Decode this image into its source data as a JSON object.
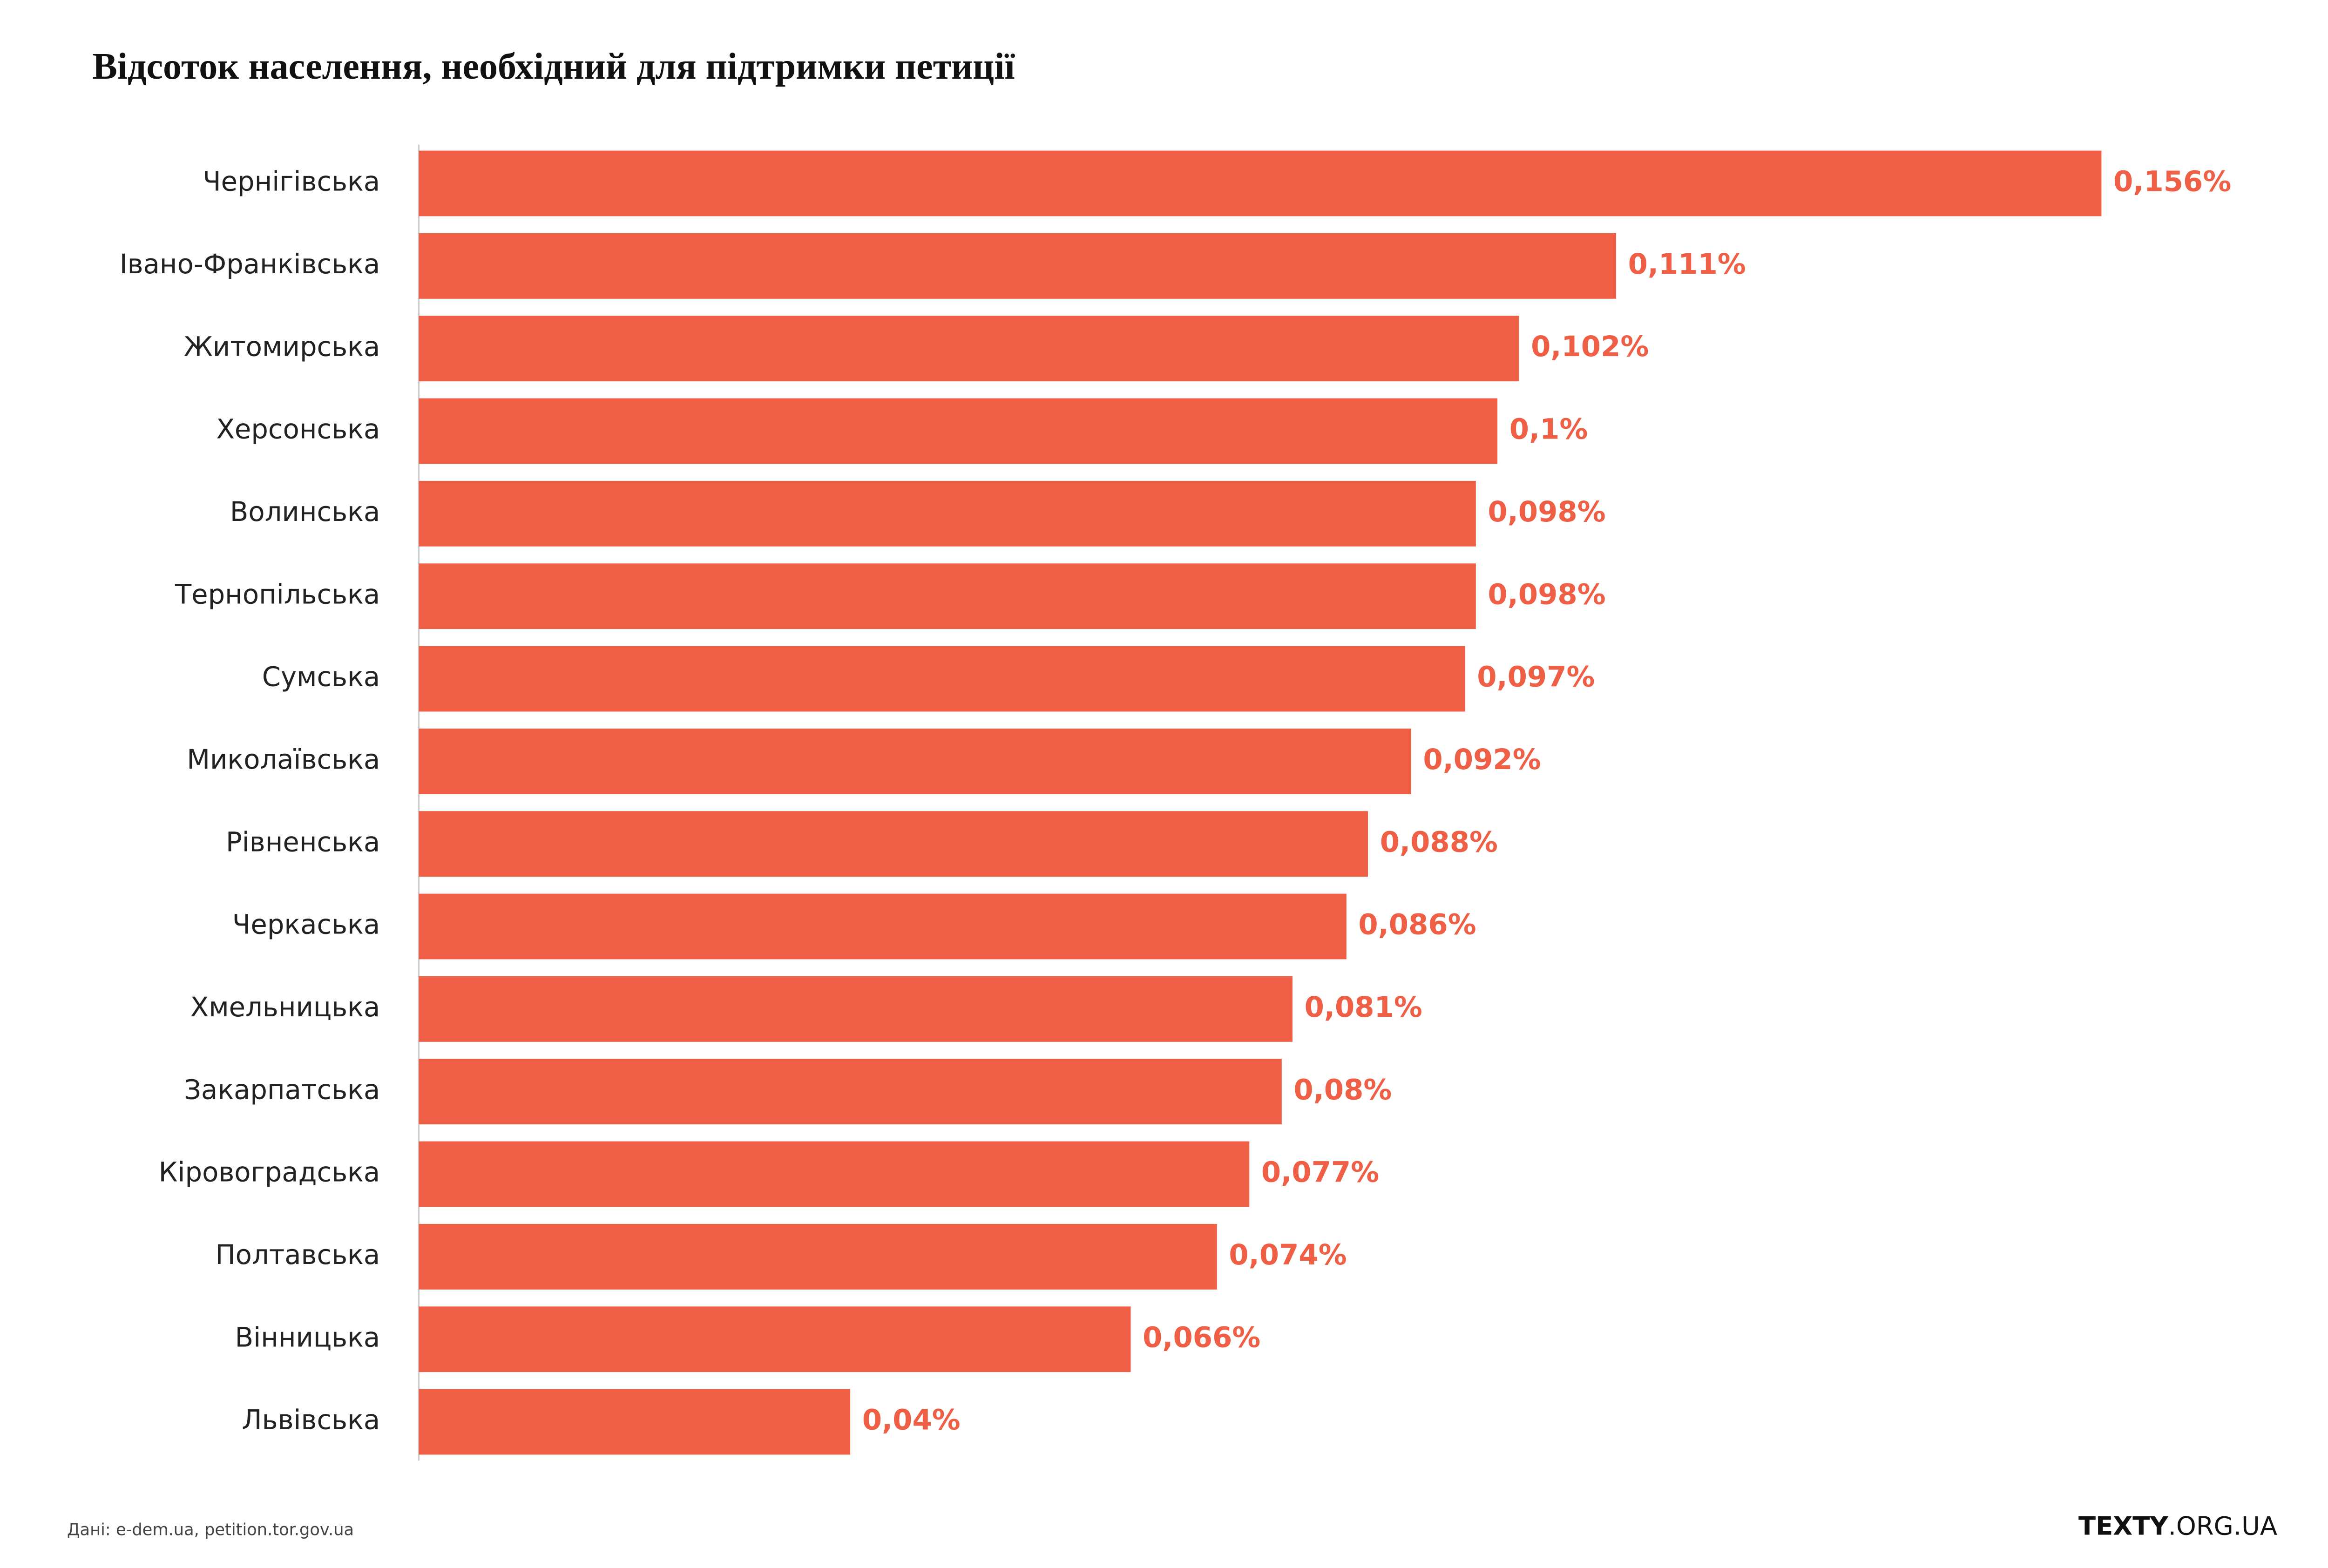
{
  "chart_data": {
    "type": "barh",
    "title": "Відсоток населення, необхідний для підтримки петиції",
    "categories": [
      "Чернігівська",
      "Івано-Франківська",
      "Житомирська",
      "Херсонська",
      "Волинська",
      "Тернопільська",
      "Сумська",
      "Миколаївська",
      "Рівненська",
      "Черкаська",
      "Хмельницька",
      "Закарпатська",
      "Кіровоградська",
      "Полтавська",
      "Вінницька",
      "Львівська"
    ],
    "values": [
      0.156,
      0.111,
      0.102,
      0.1,
      0.098,
      0.098,
      0.097,
      0.092,
      0.088,
      0.086,
      0.081,
      0.08,
      0.077,
      0.074,
      0.066,
      0.04
    ],
    "value_labels": [
      "0,156%",
      "0,111%",
      "0,102%",
      "0,1%",
      "0,098%",
      "0,098%",
      "0,097%",
      "0,092%",
      "0,088%",
      "0,086%",
      "0,081%",
      "0,08%",
      "0,077%",
      "0,074%",
      "0,066%",
      "0,04%"
    ],
    "color": "#ef5f46",
    "source": "Дані: e-dem.ua, petition.tor.gov.ua",
    "logo": [
      "TEXTY",
      ".ORG.UA"
    ]
  }
}
